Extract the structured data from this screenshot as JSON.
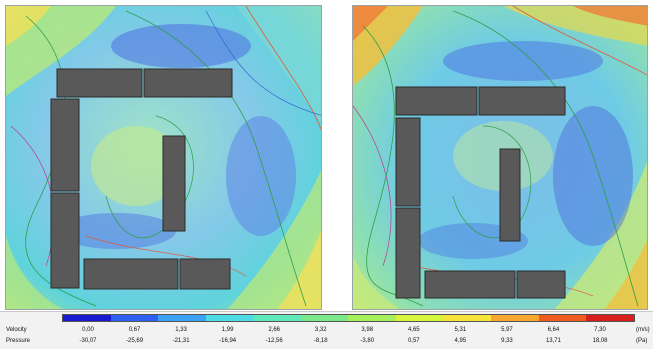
{
  "legend": {
    "velocity_label": "Velocity",
    "pressure_label": "Pressure",
    "velocity_unit": "(m/s)",
    "pressure_unit": "(Pa)",
    "velocity_ticks": [
      "0,00",
      "0,67",
      "1,33",
      "1,99",
      "2,66",
      "3,32",
      "3,98",
      "4,65",
      "5,31",
      "5,97",
      "6,64",
      "7,30"
    ],
    "pressure_ticks": [
      "-30,07",
      "-25,69",
      "-21,31",
      "-16,94",
      "-12,56",
      "-8,18",
      "-3,80",
      "0,57",
      "4,95",
      "9,33",
      "13,71",
      "18,08"
    ],
    "colors": [
      "#1a1acf",
      "#2f5ff0",
      "#3ba2f5",
      "#4ddbe6",
      "#5fe9b8",
      "#7be98a",
      "#a6f05b",
      "#d8f53e",
      "#f7e33a",
      "#f7a72d",
      "#ee5c22",
      "#d81f1a"
    ]
  }
}
